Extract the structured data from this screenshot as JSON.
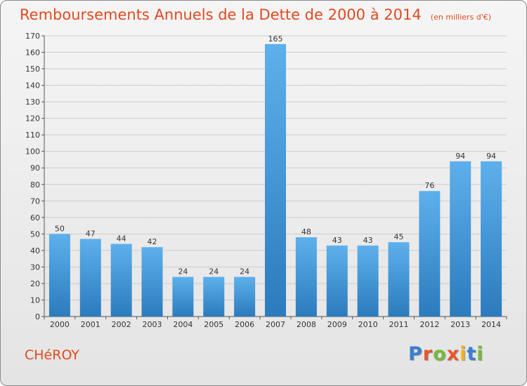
{
  "header": {
    "title": "Remboursements Annuels de la Dette de 2000 à 2014",
    "unit": "(en milliers d'€)"
  },
  "footer": {
    "city": "CHéROY",
    "logo": "Proxiti",
    "logo_colors": [
      "#3b7fd0",
      "#e8572a",
      "#77b93a",
      "#e8572a",
      "#f2b01e",
      "#3b7fd0",
      "#77b93a"
    ]
  },
  "colors": {
    "title": "#e04a1f",
    "bar_light": "#5eb0ec",
    "bar_dark": "#2b7bbd",
    "grid": "#cccccc"
  },
  "chart_data": {
    "type": "bar",
    "categories": [
      "2000",
      "2001",
      "2002",
      "2003",
      "2004",
      "2005",
      "2006",
      "2007",
      "2008",
      "2009",
      "2010",
      "2011",
      "2012",
      "2013",
      "2014"
    ],
    "values": [
      50,
      47,
      44,
      42,
      24,
      24,
      24,
      165,
      48,
      43,
      43,
      45,
      76,
      94,
      94
    ],
    "ylim": [
      0,
      170
    ],
    "yticks": [
      0,
      10,
      20,
      30,
      40,
      50,
      60,
      70,
      80,
      90,
      100,
      110,
      120,
      130,
      140,
      150,
      160,
      170
    ],
    "grid": true,
    "data_labels": true
  }
}
